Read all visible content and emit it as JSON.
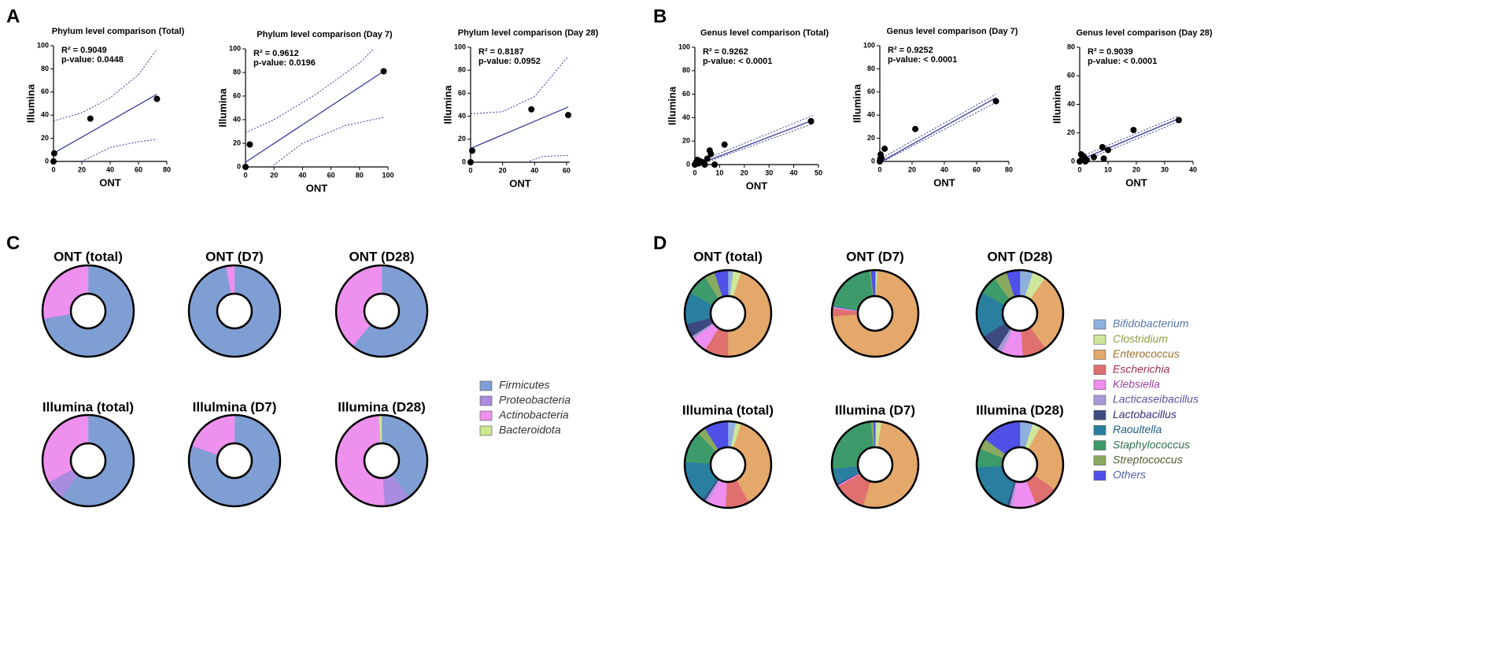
{
  "chart_data": [
    {
      "type": "scatter",
      "panel_label": "A",
      "title": "Phylum level comparison (Total)",
      "xlabel": "ONT",
      "ylabel": "Illumina",
      "annotations": [
        "R² = 0.9049",
        "p-value: 0.0448"
      ],
      "xlim": [
        0,
        80
      ],
      "xticks": [
        0,
        20,
        40,
        60,
        80
      ],
      "ylim": [
        0,
        100
      ],
      "yticks": [
        0,
        20,
        40,
        60,
        80,
        100
      ],
      "points": {
        "x": [
          0,
          0.5,
          26,
          73
        ],
        "y": [
          0,
          7,
          37,
          54
        ]
      },
      "fit_line": {
        "x": [
          0,
          73
        ],
        "y": [
          7,
          58
        ]
      },
      "ci_upper": {
        "x": [
          0,
          20,
          40,
          60,
          73
        ],
        "y": [
          35,
          42,
          55,
          75,
          97
        ]
      },
      "ci_lower": {
        "x": [
          20,
          40,
          60,
          73
        ],
        "y": [
          0,
          12,
          17,
          19
        ]
      },
      "color": "#3a3a9a"
    },
    {
      "type": "scatter",
      "title": "Phylum level comparison (Day 7)",
      "xlabel": "ONT",
      "ylabel": "Illumina",
      "annotations": [
        "R² = 0.9612",
        "p-value: 0.0196"
      ],
      "xlim": [
        0,
        100
      ],
      "xticks": [
        0,
        20,
        40,
        60,
        80,
        100
      ],
      "ylim": [
        0,
        100
      ],
      "yticks": [
        0,
        20,
        40,
        60,
        80,
        100
      ],
      "points": {
        "x": [
          0,
          3,
          97
        ],
        "y": [
          0,
          19,
          81
        ]
      },
      "fit_line": {
        "x": [
          0,
          97
        ],
        "y": [
          4,
          81
        ]
      },
      "ci_upper": {
        "x": [
          0,
          20,
          50,
          80,
          90
        ],
        "y": [
          29,
          40,
          62,
          88,
          100
        ]
      },
      "ci_lower": {
        "x": [
          18,
          40,
          70,
          97
        ],
        "y": [
          0,
          20,
          35,
          42
        ]
      },
      "color": "#3a3a9a"
    },
    {
      "type": "scatter",
      "title": "Phylum level comparison (Day 28)",
      "xlabel": "ONT",
      "ylabel": "Illumina",
      "annotations": [
        "R² = 0.8187",
        "p-value: 0.0952"
      ],
      "xlim": [
        0,
        62
      ],
      "xticks": [
        0,
        20,
        40,
        60
      ],
      "ylim": [
        0,
        100
      ],
      "yticks": [
        0,
        20,
        40,
        60,
        80,
        100
      ],
      "points": {
        "x": [
          0,
          1,
          38,
          61
        ],
        "y": [
          0,
          10,
          46,
          41
        ]
      },
      "fit_line": {
        "x": [
          0,
          61
        ],
        "y": [
          12,
          48
        ]
      },
      "ci_upper": {
        "x": [
          0,
          20,
          40,
          61
        ],
        "y": [
          42,
          44,
          57,
          92
        ]
      },
      "ci_lower": {
        "x": [
          35,
          45,
          61
        ],
        "y": [
          0,
          5,
          6
        ]
      },
      "color": "#3a3a9a"
    },
    {
      "type": "scatter",
      "panel_label": "B",
      "title": "Genus level comparison (Total)",
      "xlabel": "ONT",
      "ylabel": "Illumina",
      "annotations": [
        "R² = 0.9262",
        "p-value: < 0.0001"
      ],
      "xlim": [
        0,
        50
      ],
      "xticks": [
        0,
        10,
        20,
        30,
        40,
        50
      ],
      "ylim": [
        0,
        100
      ],
      "yticks": [
        0,
        20,
        40,
        60,
        80,
        100
      ],
      "points": {
        "x": [
          0,
          0.5,
          1,
          1.5,
          2,
          3,
          4,
          5,
          6,
          6.5,
          8,
          12,
          47
        ],
        "y": [
          0,
          2,
          4,
          1,
          3,
          2,
          0,
          5,
          12,
          9,
          0,
          17,
          37
        ]
      },
      "fit_line": {
        "x": [
          1,
          48
        ],
        "y": [
          0,
          38
        ]
      },
      "ci_upper": {
        "x": [
          0,
          48
        ],
        "y": [
          1,
          42
        ]
      },
      "ci_lower": {
        "x": [
          2,
          48
        ],
        "y": [
          0,
          35
        ]
      },
      "color": "#3a3a9a"
    },
    {
      "type": "scatter",
      "title": "Genus level comparison (Day 7)",
      "xlabel": "ONT",
      "ylabel": "Illumina",
      "annotations": [
        "R² = 0.9252",
        "p-value: < 0.0001"
      ],
      "xlim": [
        0,
        80
      ],
      "xticks": [
        0,
        20,
        40,
        60,
        80
      ],
      "ylim": [
        0,
        100
      ],
      "yticks": [
        0,
        20,
        40,
        60,
        80,
        100
      ],
      "points": {
        "x": [
          0,
          0.2,
          0.5,
          1,
          3,
          22,
          72
        ],
        "y": [
          0,
          2,
          6,
          3,
          11,
          28,
          52
        ]
      },
      "fit_line": {
        "x": [
          1,
          72
        ],
        "y": [
          0,
          55
        ]
      },
      "ci_upper": {
        "x": [
          0,
          72
        ],
        "y": [
          2,
          58
        ]
      },
      "ci_lower": {
        "x": [
          2,
          72
        ],
        "y": [
          0,
          51
        ]
      },
      "color": "#3a3a9a"
    },
    {
      "type": "scatter",
      "title": "Genus level comparison (Day 28)",
      "xlabel": "ONT",
      "ylabel": "Illumina",
      "annotations": [
        "R² = 0.9039",
        "p-value: < 0.0001"
      ],
      "xlim": [
        0,
        40
      ],
      "xticks": [
        0,
        10,
        20,
        30,
        40
      ],
      "ylim": [
        0,
        80
      ],
      "yticks": [
        0,
        20,
        40,
        60,
        80
      ],
      "points": {
        "x": [
          0,
          0.5,
          1,
          1.5,
          2,
          2.5,
          5,
          8,
          8.5,
          10,
          19,
          35
        ],
        "y": [
          0,
          5,
          4,
          3,
          0,
          1,
          3,
          10,
          2,
          8,
          22,
          29
        ]
      },
      "fit_line": {
        "x": [
          0,
          35
        ],
        "y": [
          1,
          30
        ]
      },
      "ci_upper": {
        "x": [
          0,
          35
        ],
        "y": [
          3,
          32
        ]
      },
      "ci_lower": {
        "x": [
          1,
          35
        ],
        "y": [
          0,
          28
        ]
      },
      "color": "#3a3a9a"
    },
    {
      "type": "donut",
      "panel_label": "C",
      "categories": [
        "Firmicutes",
        "Proteobacteria",
        "Actinobacteria",
        "Bacteroidota"
      ],
      "colors": [
        "#7f9fd4",
        "#a98be0",
        "#ee90ee",
        "#cce890"
      ],
      "series": [
        {
          "name": "ONT  (total)",
          "values": [
            72,
            0.5,
            27.5,
            0
          ]
        },
        {
          "name": "ONT (D7)",
          "values": [
            97,
            0,
            3,
            0
          ]
        },
        {
          "name": "ONT (D28)",
          "values": [
            61,
            0,
            39,
            0
          ]
        },
        {
          "name": "Illumina (total)",
          "values": [
            60,
            7,
            33,
            0
          ]
        },
        {
          "name": "Illulmina (D7)",
          "values": [
            80,
            0.5,
            19.5,
            0
          ]
        },
        {
          "name": "Illumina (D28)",
          "values": [
            40,
            9,
            50,
            1
          ]
        }
      ],
      "legend": "right"
    },
    {
      "type": "donut",
      "panel_label": "D",
      "categories": [
        "Bifidobacterium",
        "Clostridium",
        "Enterococcus",
        "Escherichia",
        "Klebsiella",
        "Lacticaseibacillus",
        "Lactobacillus",
        "Raoultella",
        "Staphylococcus",
        "Streptococcus",
        "Others"
      ],
      "colors": [
        "#8fb0dc",
        "#cfe79a",
        "#e3a86a",
        "#e07070",
        "#ee8ef0",
        "#a89ad8",
        "#3d4a80",
        "#2a7fa0",
        "#3d9a6a",
        "#8aaa60",
        "#5050e8"
      ],
      "text_colors": [
        "#5577aa",
        "#8aa040",
        "#a07030",
        "#a03050",
        "#a040a0",
        "#6050a0",
        "#303070",
        "#206080",
        "#307050",
        "#506030",
        "#5060a0"
      ],
      "series": [
        {
          "name": "ONT (total)",
          "values": [
            2,
            3,
            45,
            9,
            6,
            1,
            5,
            12,
            8,
            4,
            5
          ]
        },
        {
          "name": "ONT (D7)",
          "values": [
            0.5,
            0.5,
            73,
            3,
            0.5,
            0,
            0,
            0.5,
            20,
            0.5,
            1.5
          ]
        },
        {
          "name": "ONT (D28)",
          "values": [
            5,
            5,
            30,
            9,
            8,
            2,
            7,
            17,
            7,
            5,
            5
          ]
        },
        {
          "name": "Illumina (total)",
          "values": [
            3,
            2,
            37,
            9,
            7,
            1,
            1,
            16,
            12,
            3,
            9
          ]
        },
        {
          "name": "Illumina (D7)",
          "values": [
            0.5,
            2,
            52,
            12,
            0.5,
            0,
            0.5,
            6,
            25,
            1,
            0.5
          ]
        },
        {
          "name": "Illumina (D28)",
          "values": [
            5,
            3,
            27,
            9,
            9,
            1,
            1,
            19,
            7,
            4,
            15
          ]
        }
      ],
      "legend": "right"
    }
  ]
}
